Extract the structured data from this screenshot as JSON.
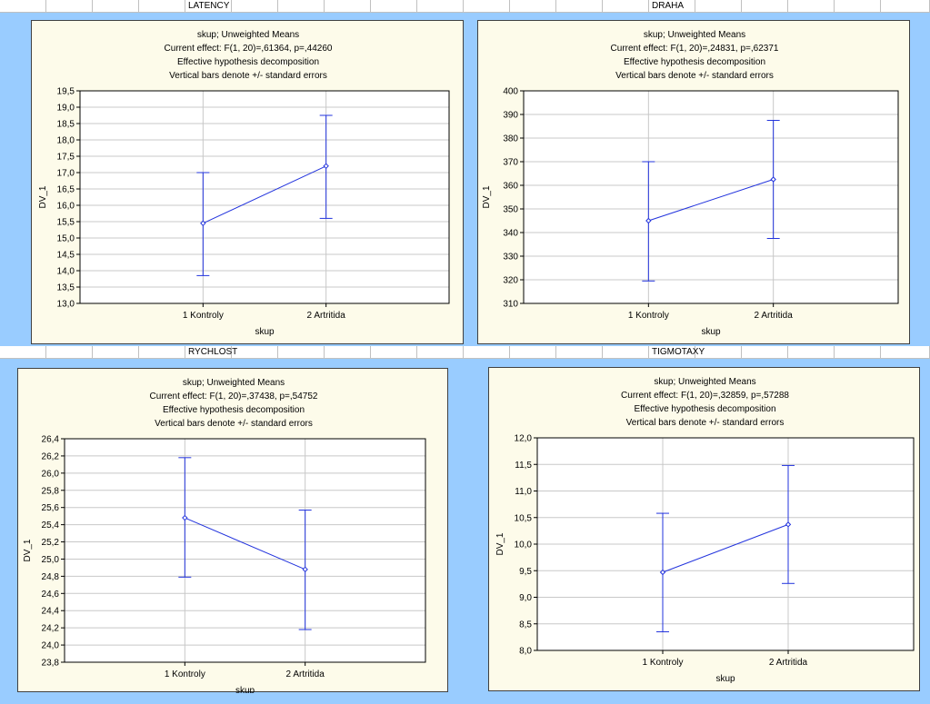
{
  "colors": {
    "background": "#99ccff",
    "panel": "#fdfbea",
    "series": "#2233dd",
    "grid": "#c8c8c8"
  },
  "headers": [
    {
      "label": "LATENCY"
    },
    {
      "label": "DRAHA"
    },
    {
      "label": "RYCHLOST"
    },
    {
      "label": "TIGMOTAXY"
    }
  ],
  "chart_data": [
    {
      "type": "line",
      "header_lines": [
        "skup; Unweighted Means",
        "Current effect: F(1, 20)=,61364, p=,44260",
        "Effective hypothesis decomposition",
        "Vertical bars denote +/- standard errors"
      ],
      "xlabel": "skup",
      "ylabel": "DV_1",
      "categories": [
        "1 Kontroly",
        "2 Artritida"
      ],
      "means": [
        15.45,
        17.2
      ],
      "err_low": [
        13.85,
        15.6
      ],
      "err_high": [
        17.0,
        18.75
      ],
      "ylim": [
        13.0,
        19.5
      ],
      "yticks": [
        "13,0",
        "13,5",
        "14,0",
        "14,5",
        "15,0",
        "15,5",
        "16,0",
        "16,5",
        "17,0",
        "17,5",
        "18,0",
        "18,5",
        "19,0",
        "19,5"
      ],
      "grid": true
    },
    {
      "type": "line",
      "header_lines": [
        "skup; Unweighted Means",
        "Current effect: F(1, 20)=,24831, p=,62371",
        "Effective hypothesis decomposition",
        "Vertical bars denote +/- standard errors"
      ],
      "xlabel": "skup",
      "ylabel": "DV_1",
      "categories": [
        "1 Kontroly",
        "2 Artritida"
      ],
      "means": [
        345,
        362.5
      ],
      "err_low": [
        319.5,
        337.5
      ],
      "err_high": [
        370,
        387.5
      ],
      "ylim": [
        310,
        400
      ],
      "yticks": [
        "310",
        "320",
        "330",
        "340",
        "350",
        "360",
        "370",
        "380",
        "390",
        "400"
      ],
      "grid": true
    },
    {
      "type": "line",
      "header_lines": [
        "skup; Unweighted Means",
        "Current effect: F(1, 20)=,37438, p=,54752",
        "Effective hypothesis decomposition",
        "Vertical bars denote +/- standard errors"
      ],
      "xlabel": "skup",
      "ylabel": "DV_1",
      "categories": [
        "1 Kontroly",
        "2 Artritida"
      ],
      "means": [
        25.48,
        24.88
      ],
      "err_low": [
        24.79,
        24.18
      ],
      "err_high": [
        26.18,
        25.57
      ],
      "ylim": [
        23.8,
        26.4
      ],
      "yticks": [
        "23,8",
        "24,0",
        "24,2",
        "24,4",
        "24,6",
        "24,8",
        "25,0",
        "25,2",
        "25,4",
        "25,6",
        "25,8",
        "26,0",
        "26,2",
        "26,4"
      ],
      "grid": true
    },
    {
      "type": "line",
      "header_lines": [
        "skup; Unweighted Means",
        "Current effect: F(1, 20)=,32859, p=,57288",
        "Effective hypothesis decomposition",
        "Vertical bars denote +/- standard errors"
      ],
      "xlabel": "skup",
      "ylabel": "DV_1",
      "categories": [
        "1 Kontroly",
        "2 Artritida"
      ],
      "means": [
        9.47,
        10.37
      ],
      "err_low": [
        8.35,
        9.26
      ],
      "err_high": [
        10.58,
        11.48
      ],
      "ylim": [
        8.0,
        12.0
      ],
      "yticks": [
        "8,0",
        "8,5",
        "9,0",
        "9,5",
        "10,0",
        "10,5",
        "11,0",
        "11,5",
        "12,0"
      ],
      "grid": true
    }
  ]
}
